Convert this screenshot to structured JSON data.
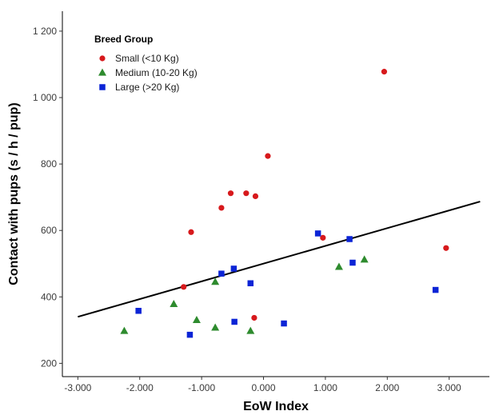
{
  "chart_data": {
    "type": "scatter",
    "xlabel": "EoW Index",
    "ylabel": "Contact with pups (s / h / pup)",
    "xlim": [
      -3.25,
      3.65
    ],
    "ylim": [
      160,
      1260
    ],
    "xticks": [
      -3,
      -2,
      -1,
      0,
      1,
      2,
      3
    ],
    "xtick_labels": [
      "-3.000",
      "-2.000",
      "-1.000",
      "0.000",
      "1.000",
      "2.000",
      "3.000"
    ],
    "yticks": [
      200,
      400,
      600,
      800,
      1000,
      1200
    ],
    "ytick_labels": [
      "200",
      "400",
      "600",
      "800",
      "1 000",
      "1 200"
    ],
    "grid": false,
    "legend": {
      "title": "Breed Group",
      "placement": "top-left"
    },
    "series": [
      {
        "name": "Small (<10 Kg)",
        "marker": "circle",
        "color": "#d7191c",
        "points": [
          {
            "x": -1.17,
            "y": 595
          },
          {
            "x": -0.68,
            "y": 668
          },
          {
            "x": -0.53,
            "y": 712
          },
          {
            "x": -0.28,
            "y": 712
          },
          {
            "x": -0.13,
            "y": 703
          },
          {
            "x": 0.07,
            "y": 824
          },
          {
            "x": -1.29,
            "y": 430
          },
          {
            "x": -0.15,
            "y": 337
          },
          {
            "x": 0.96,
            "y": 578
          },
          {
            "x": 1.95,
            "y": 1078
          },
          {
            "x": 2.95,
            "y": 547
          }
        ]
      },
      {
        "name": "Medium (10-20 Kg)",
        "marker": "triangle",
        "color": "#2e8b2e",
        "points": [
          {
            "x": -2.25,
            "y": 297
          },
          {
            "x": -1.45,
            "y": 378
          },
          {
            "x": -1.08,
            "y": 330
          },
          {
            "x": -0.78,
            "y": 445
          },
          {
            "x": -0.78,
            "y": 307
          },
          {
            "x": -0.21,
            "y": 297
          },
          {
            "x": 1.22,
            "y": 490
          },
          {
            "x": 1.63,
            "y": 512
          }
        ]
      },
      {
        "name": "Large (>20 Kg)",
        "marker": "square",
        "color": "#0b24d6",
        "points": [
          {
            "x": -2.02,
            "y": 358
          },
          {
            "x": -1.19,
            "y": 286
          },
          {
            "x": -0.68,
            "y": 470
          },
          {
            "x": -0.48,
            "y": 485
          },
          {
            "x": -0.21,
            "y": 441
          },
          {
            "x": -0.47,
            "y": 325
          },
          {
            "x": 0.33,
            "y": 320
          },
          {
            "x": 0.88,
            "y": 591
          },
          {
            "x": 1.39,
            "y": 574
          },
          {
            "x": 1.44,
            "y": 503
          },
          {
            "x": 2.78,
            "y": 421
          }
        ]
      }
    ],
    "trendline": {
      "color": "#000000",
      "x": [
        -3.0,
        3.5
      ],
      "y": [
        340,
        687
      ]
    }
  }
}
